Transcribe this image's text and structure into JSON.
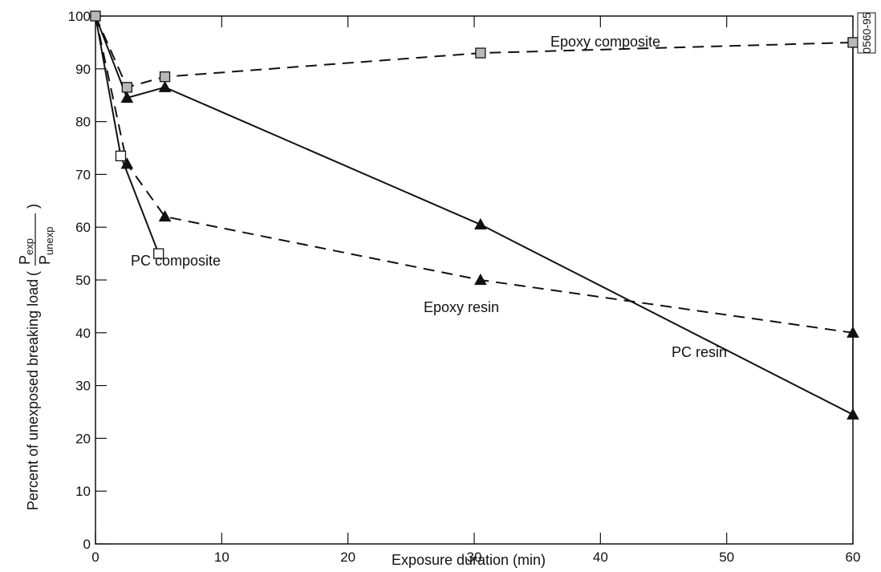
{
  "chart_data": {
    "type": "line",
    "xlabel": "Exposure duration (min)",
    "ylabel": {
      "text": "Percent of unexposed breaking load",
      "numerator": "P",
      "numerator_sub": "exp",
      "denominator": "P",
      "denominator_sub": "unexp"
    },
    "figure_id": "0560-95",
    "xlim": [
      0,
      60
    ],
    "ylim": [
      0,
      100
    ],
    "xticks": [
      0,
      10,
      20,
      30,
      40,
      50,
      60
    ],
    "yticks": [
      0,
      10,
      20,
      30,
      40,
      50,
      60,
      70,
      80,
      90,
      100
    ],
    "series": [
      {
        "name": "Epoxy composite",
        "line": "dashed",
        "marker": "shaded-square",
        "x": [
          0,
          2.5,
          5.5,
          30.5,
          60
        ],
        "y": [
          100,
          86.5,
          88.5,
          93,
          95
        ]
      },
      {
        "name": "PC resin",
        "line": "solid",
        "marker": "filled-triangle",
        "x": [
          0,
          2.5,
          5.5,
          30.5,
          60
        ],
        "y": [
          100,
          84.5,
          86.5,
          60.5,
          24.5
        ]
      },
      {
        "name": "PC composite",
        "line": "solid",
        "marker": "open-square",
        "x": [
          0,
          2,
          5
        ],
        "y": [
          100,
          73.5,
          55
        ]
      },
      {
        "name": "Epoxy resin",
        "line": "dashed",
        "marker": "filled-triangle",
        "x": [
          0,
          2.5,
          5.5,
          30.5,
          60
        ],
        "y": [
          100,
          72,
          62,
          50,
          40
        ]
      }
    ]
  }
}
